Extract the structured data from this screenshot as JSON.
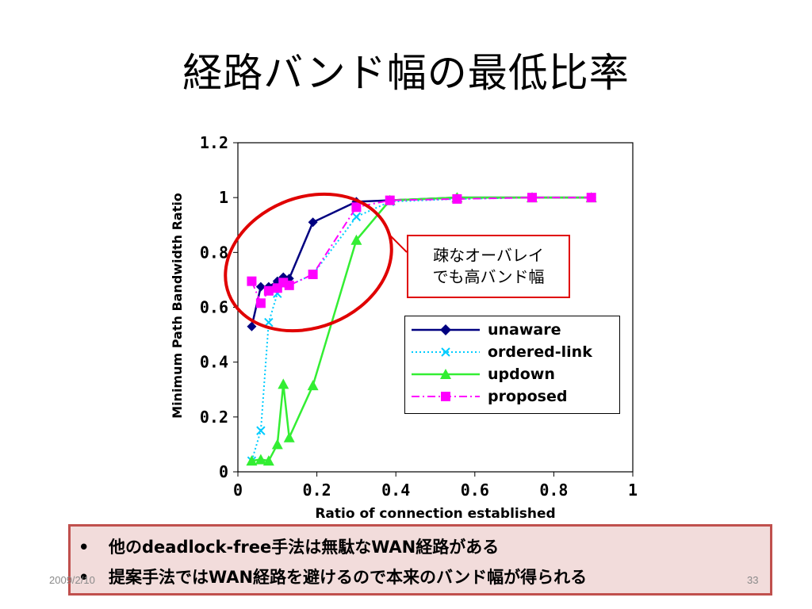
{
  "slide": {
    "title": "経路バンド幅の最低比率",
    "date": "2009/2/10",
    "page_number": "33"
  },
  "callout": {
    "line1": "疎なオーバレイ",
    "line2": "でも高バンド幅"
  },
  "notes": [
    {
      "bullet": "•",
      "text": "他のdeadlock-free手法は無駄なWAN経路がある"
    },
    {
      "bullet": "•",
      "text": "提案手法ではWAN経路を避けるので本来のバンド幅が得られる"
    }
  ],
  "colors": {
    "callout_border": "#e00000",
    "notes_background": "#f2dcdb",
    "notes_border": "#c0504d",
    "highlight_ellipse": "#e00000"
  },
  "chart_data": {
    "type": "line",
    "xlabel": "Ratio of connection established",
    "ylabel": "Minimum Path Bandwidth Ratio",
    "xlim": [
      0,
      1
    ],
    "ylim": [
      0,
      1.2
    ],
    "x_ticks": [
      "0",
      "0.2",
      "0.4",
      "0.6",
      "0.8",
      "1"
    ],
    "y_ticks": [
      "0",
      "0.2",
      "0.4",
      "0.6",
      "0.8",
      "1",
      "1.2"
    ],
    "grid": false,
    "legend_position": "center-right",
    "series": [
      {
        "name": "unaware",
        "color": "#000080",
        "marker": "diamond",
        "dash": "solid",
        "points": [
          [
            0.035,
            0.53
          ],
          [
            0.058,
            0.675
          ],
          [
            0.078,
            0.675
          ],
          [
            0.1,
            0.695
          ],
          [
            0.115,
            0.71
          ],
          [
            0.13,
            0.705
          ],
          [
            0.19,
            0.91
          ],
          [
            0.3,
            0.985
          ],
          [
            0.385,
            0.99
          ],
          [
            0.555,
            1.0
          ],
          [
            0.745,
            1.0
          ],
          [
            0.895,
            1.0
          ]
        ]
      },
      {
        "name": "ordered-link",
        "color": "#00ccff",
        "marker": "x",
        "dash": "dotted",
        "points": [
          [
            0.035,
            0.04
          ],
          [
            0.058,
            0.15
          ],
          [
            0.078,
            0.545
          ],
          [
            0.1,
            0.65
          ],
          [
            0.115,
            0.68
          ],
          [
            0.13,
            0.68
          ],
          [
            0.19,
            0.72
          ],
          [
            0.3,
            0.93
          ],
          [
            0.385,
            0.985
          ],
          [
            0.555,
            0.995
          ],
          [
            0.745,
            1.0
          ],
          [
            0.895,
            1.0
          ]
        ]
      },
      {
        "name": "updown",
        "color": "#33ee33",
        "marker": "triangle",
        "dash": "solid",
        "points": [
          [
            0.035,
            0.04
          ],
          [
            0.058,
            0.045
          ],
          [
            0.078,
            0.04
          ],
          [
            0.1,
            0.1
          ],
          [
            0.115,
            0.32
          ],
          [
            0.13,
            0.125
          ],
          [
            0.19,
            0.315
          ],
          [
            0.3,
            0.845
          ],
          [
            0.385,
            0.99
          ],
          [
            0.555,
            1.0
          ],
          [
            0.745,
            1.0
          ],
          [
            0.895,
            1.0
          ]
        ]
      },
      {
        "name": "proposed",
        "color": "#ff00ff",
        "marker": "square",
        "dash": "dashdot",
        "points": [
          [
            0.035,
            0.695
          ],
          [
            0.058,
            0.615
          ],
          [
            0.078,
            0.66
          ],
          [
            0.1,
            0.67
          ],
          [
            0.115,
            0.69
          ],
          [
            0.13,
            0.68
          ],
          [
            0.19,
            0.72
          ],
          [
            0.3,
            0.965
          ],
          [
            0.385,
            0.99
          ],
          [
            0.555,
            0.995
          ],
          [
            0.745,
            1.0
          ],
          [
            0.895,
            1.0
          ]
        ]
      }
    ]
  }
}
